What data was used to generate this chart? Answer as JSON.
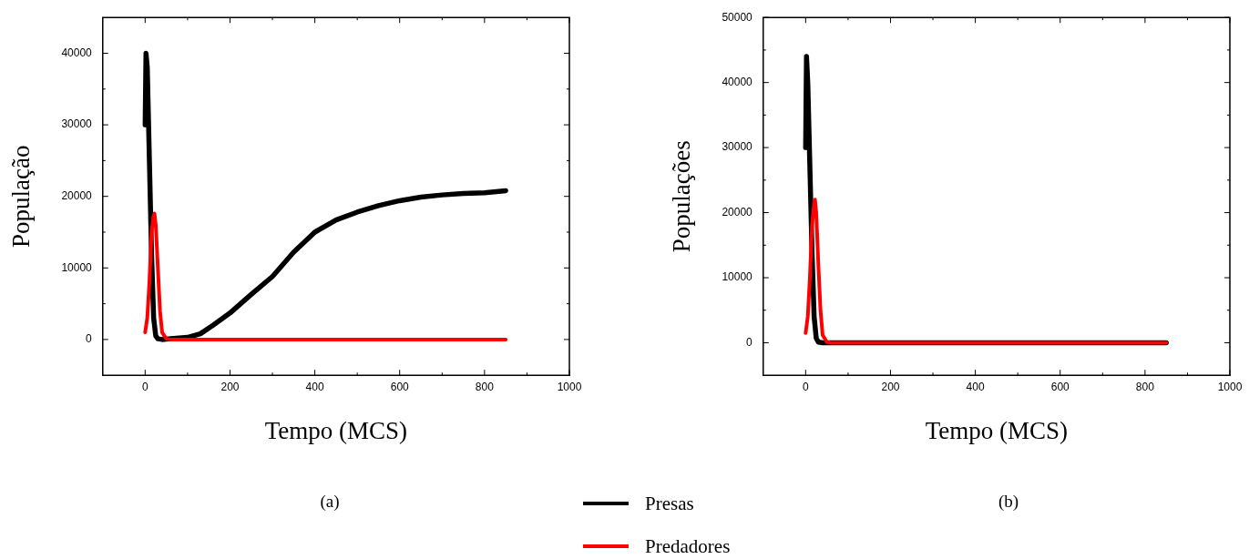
{
  "chart_data": [
    {
      "type": "line",
      "xlabel": "Tempo (MCS)",
      "ylabel": "População",
      "xlim": [
        -100,
        1000
      ],
      "xticks": [
        0,
        200,
        400,
        600,
        800,
        1000
      ],
      "ylim": [
        -5000,
        45000
      ],
      "yticks": [
        0,
        10000,
        20000,
        30000,
        40000
      ],
      "legend": "bottom",
      "marker": "none",
      "line_style": "solid",
      "annotations": [
        "(a)"
      ],
      "series": [
        {
          "name": "Presas",
          "color": "#000000",
          "x": [
            0,
            2,
            5,
            10,
            15,
            20,
            25,
            30,
            40,
            60,
            100,
            130,
            160,
            200,
            250,
            300,
            350,
            400,
            450,
            500,
            550,
            600,
            650,
            700,
            750,
            800,
            850
          ],
          "values": [
            30000,
            40000,
            38000,
            25000,
            12000,
            3000,
            500,
            100,
            0,
            100,
            300,
            800,
            2000,
            3700,
            6300,
            8800,
            12200,
            15000,
            16700,
            17800,
            18700,
            19400,
            19900,
            20200,
            20400,
            20500,
            20800
          ]
        },
        {
          "name": "Predadores",
          "color": "#ff0000",
          "x": [
            0,
            5,
            10,
            15,
            20,
            22,
            25,
            30,
            35,
            40,
            50,
            60,
            850
          ],
          "values": [
            1000,
            3000,
            8000,
            15000,
            17300,
            17600,
            16000,
            10000,
            4000,
            1000,
            100,
            0,
            0
          ]
        }
      ]
    },
    {
      "type": "line",
      "xlabel": "Tempo (MCS)",
      "ylabel": "Populações",
      "xlim": [
        -100,
        1000
      ],
      "xticks": [
        0,
        200,
        400,
        600,
        800,
        1000
      ],
      "ylim": [
        -5000,
        50000
      ],
      "yticks": [
        0,
        10000,
        20000,
        30000,
        40000,
        50000
      ],
      "marker": "none",
      "line_style": "solid",
      "annotations": [
        "(b)"
      ],
      "series": [
        {
          "color": "#000000",
          "x": [
            0,
            2,
            5,
            10,
            15,
            20,
            25,
            30,
            40,
            850
          ],
          "values": [
            30000,
            44000,
            40000,
            27000,
            14000,
            4000,
            700,
            100,
            0,
            0
          ]
        },
        {
          "color": "#ff0000",
          "x": [
            0,
            5,
            10,
            15,
            20,
            22,
            25,
            30,
            35,
            40,
            50,
            60,
            850
          ],
          "values": [
            1500,
            4000,
            10000,
            18000,
            21500,
            22000,
            20000,
            12000,
            5000,
            1200,
            100,
            0,
            0
          ]
        }
      ]
    }
  ]
}
